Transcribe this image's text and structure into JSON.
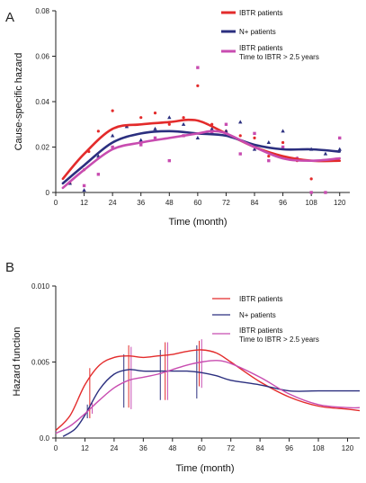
{
  "panel_a": {
    "letter": "A"
  },
  "panel_b": {
    "letter": "B"
  },
  "colors": {
    "ibtr": "#e32b2b",
    "nplus": "#2b2f7f",
    "ibtr25": "#c84cb0"
  },
  "chart_data": [
    {
      "type": "line",
      "panel": "A",
      "xlabel": "Time (month)",
      "ylabel": "Cause-specific hazard",
      "xlim": [
        0,
        122
      ],
      "ylim": [
        0,
        0.08
      ],
      "xticks": [
        "0",
        "12",
        "24",
        "36",
        "48",
        "60",
        "72",
        "84",
        "96",
        "108",
        "120"
      ],
      "xtick_values": [
        0,
        12,
        24,
        36,
        48,
        60,
        72,
        84,
        96,
        108,
        120
      ],
      "yticks": [
        "0",
        "0.02",
        "0.04",
        "0.06",
        "0.08"
      ],
      "ytick_values": [
        0,
        0.02,
        0.04,
        0.06,
        0.08
      ],
      "legend_position": "top-right",
      "series": [
        {
          "name": "IBTR patients",
          "color": "#e32b2b",
          "x": [
            3,
            12,
            24,
            36,
            48,
            56,
            62,
            72,
            84,
            96,
            108,
            120
          ],
          "values": [
            0.006,
            0.017,
            0.028,
            0.03,
            0.031,
            0.032,
            0.031,
            0.026,
            0.02,
            0.016,
            0.014,
            0.014
          ],
          "points_x": [
            6,
            12,
            14,
            18,
            24,
            30,
            36,
            42,
            48,
            54,
            60,
            66,
            72,
            78,
            84,
            90,
            96,
            102,
            108
          ],
          "points_y": [
            0.004,
            0.01,
            0.018,
            0.027,
            0.036,
            0.029,
            0.033,
            0.035,
            0.03,
            0.033,
            0.047,
            0.03,
            0.027,
            0.025,
            0.024,
            0.016,
            0.022,
            0.014,
            0.006
          ]
        },
        {
          "name": "N+ patients",
          "color": "#2b2f7f",
          "x": [
            3,
            12,
            24,
            36,
            48,
            60,
            72,
            84,
            96,
            108,
            120
          ],
          "values": [
            0.004,
            0.012,
            0.022,
            0.026,
            0.027,
            0.026,
            0.025,
            0.021,
            0.019,
            0.019,
            0.018
          ],
          "points_x": [
            6,
            12,
            18,
            24,
            30,
            36,
            42,
            48,
            54,
            60,
            66,
            72,
            78,
            84,
            90,
            96,
            102,
            108,
            114,
            120
          ],
          "points_y": [
            0.004,
            0.001,
            0.016,
            0.025,
            0.029,
            0.023,
            0.028,
            0.033,
            0.03,
            0.024,
            0.028,
            0.027,
            0.031,
            0.019,
            0.022,
            0.027,
            0.015,
            0.019,
            0.017,
            0.019
          ]
        },
        {
          "name": "IBTR patients\nTime to IBTR > 2.5 years",
          "color": "#c84cb0",
          "x": [
            3,
            12,
            24,
            36,
            48,
            60,
            66,
            72,
            84,
            96,
            108,
            120
          ],
          "values": [
            0.002,
            0.01,
            0.019,
            0.022,
            0.024,
            0.026,
            0.027,
            0.026,
            0.02,
            0.015,
            0.014,
            0.015
          ],
          "points_x": [
            12,
            18,
            24,
            36,
            42,
            48,
            54,
            60,
            66,
            72,
            78,
            84,
            90,
            96,
            102,
            108,
            114,
            120
          ],
          "points_y": [
            0.003,
            0.008,
            0.02,
            0.021,
            0.024,
            0.014,
            0.025,
            0.055,
            0.026,
            0.03,
            0.017,
            0.026,
            0.014,
            0.02,
            0.015,
            0.0,
            0.0,
            0.024
          ]
        }
      ]
    },
    {
      "type": "line",
      "panel": "B",
      "xlabel": "Time (month)",
      "ylabel": "Hazard function",
      "xlim": [
        0,
        125
      ],
      "ylim": [
        0,
        0.01
      ],
      "xticks": [
        "0",
        "12",
        "24",
        "36",
        "48",
        "60",
        "72",
        "84",
        "96",
        "108",
        "120"
      ],
      "xtick_values": [
        0,
        12,
        24,
        36,
        48,
        60,
        72,
        84,
        96,
        108,
        120
      ],
      "yticks": [
        "0.0",
        "0.005",
        "0.010"
      ],
      "ytick_values": [
        0,
        0.005,
        0.01
      ],
      "legend_position": "top-right",
      "series": [
        {
          "name": "IBTR patients",
          "color": "#e32b2b",
          "x": [
            0,
            6,
            12,
            18,
            24,
            30,
            36,
            42,
            48,
            54,
            60,
            66,
            72,
            84,
            96,
            108,
            120,
            125
          ],
          "values": [
            0.0005,
            0.0015,
            0.0035,
            0.0048,
            0.0053,
            0.0054,
            0.0053,
            0.0054,
            0.0055,
            0.0057,
            0.0058,
            0.0056,
            0.005,
            0.0037,
            0.0027,
            0.0021,
            0.0019,
            0.0018
          ],
          "marks_x": [
            14,
            30,
            45,
            59
          ],
          "marks_low": [
            0.0013,
            0.002,
            0.0025,
            0.0034
          ],
          "marks_high": [
            0.0046,
            0.0061,
            0.0063,
            0.0064
          ]
        },
        {
          "name": "N+ patients",
          "color": "#2b2f7f",
          "x": [
            3,
            8,
            12,
            18,
            24,
            30,
            36,
            42,
            48,
            54,
            60,
            66,
            72,
            84,
            96,
            108,
            120,
            125
          ],
          "values": [
            0.0001,
            0.0006,
            0.0015,
            0.0032,
            0.0042,
            0.0045,
            0.0044,
            0.0044,
            0.0044,
            0.0044,
            0.0043,
            0.0041,
            0.0038,
            0.0035,
            0.0031,
            0.0031,
            0.0031,
            0.0031
          ],
          "marks_x": [
            13,
            28,
            43,
            58
          ],
          "marks_low": [
            0.0013,
            0.002,
            0.0025,
            0.0026
          ],
          "marks_high": [
            0.0022,
            0.0055,
            0.0058,
            0.0061
          ]
        },
        {
          "name": "IBTR patients\nTime to IBTR > 2.5 years",
          "color": "#c84cb0",
          "x": [
            0,
            6,
            12,
            18,
            24,
            30,
            36,
            42,
            48,
            54,
            60,
            66,
            72,
            84,
            96,
            108,
            120,
            125
          ],
          "values": [
            0.0003,
            0.0008,
            0.0016,
            0.0025,
            0.0033,
            0.0038,
            0.004,
            0.0042,
            0.0045,
            0.0048,
            0.005,
            0.0051,
            0.0049,
            0.004,
            0.0029,
            0.0022,
            0.002,
            0.002
          ],
          "marks_x": [
            15,
            31,
            46,
            60
          ],
          "marks_low": [
            0.0016,
            0.0019,
            0.0025,
            0.0033
          ],
          "marks_high": [
            0.0023,
            0.006,
            0.0063,
            0.0065
          ]
        }
      ]
    }
  ]
}
